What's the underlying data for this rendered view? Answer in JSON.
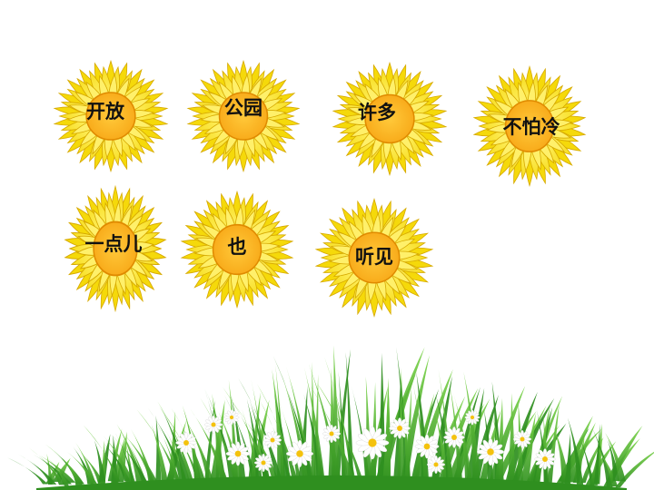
{
  "flowers": [
    {
      "word": "开放"
    },
    {
      "word": "公园"
    },
    {
      "word": "许多"
    },
    {
      "word": "不怕冷"
    },
    {
      "word": "一点儿"
    },
    {
      "word": "也"
    },
    {
      "word": "听见"
    }
  ],
  "colors": {
    "petal_outer": "#f5d90a",
    "petal_inner": "#fff06a",
    "petal_edge": "#d6a900",
    "center": "#f7a615",
    "center_edge": "#e08a00",
    "grass_dark": "#2f8f1f",
    "grass_light": "#7bd44a",
    "daisy_petal": "#ffffff",
    "daisy_center": "#f4c20d"
  }
}
